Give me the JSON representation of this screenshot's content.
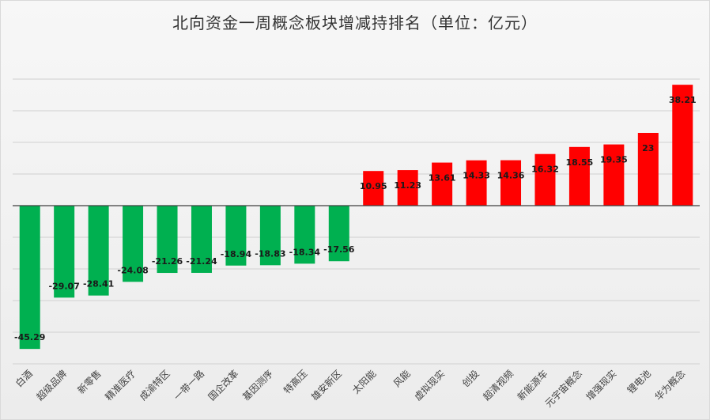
{
  "chart_data": {
    "type": "bar",
    "title": "北向资金一周概念板块增减持排名（单位：亿元）",
    "categories": [
      "白酒",
      "超级品牌",
      "新零售",
      "精准医疗",
      "成渝特区",
      "一带一路",
      "国企改革",
      "基因测序",
      "特高压",
      "雄安新区",
      "太阳能",
      "风能",
      "虚拟现实",
      "创投",
      "超清视频",
      "新能源车",
      "元宇宙概念",
      "增强现实",
      "锂电池",
      "华为概念"
    ],
    "values": [
      -45.29,
      -29.07,
      -28.41,
      -24.08,
      -21.26,
      -21.24,
      -18.94,
      -18.83,
      -18.34,
      -17.56,
      10.95,
      11.23,
      13.61,
      14.33,
      14.36,
      16.32,
      18.55,
      19.35,
      23,
      38.21
    ],
    "labels": [
      "-45.29",
      "-29.07",
      "-28.41",
      "-24.08",
      "-21.26",
      "-21.24",
      "-18.94",
      "-18.83",
      "-18.34",
      "-17.56",
      "10.95",
      "11.23",
      "13.61",
      "14.33",
      "14.36",
      "16.32",
      "18.55",
      "19.35",
      "23",
      "38.21"
    ],
    "ylim": [
      -50,
      40
    ],
    "grid": true,
    "legend": "none",
    "colors": {
      "positive": "#ff0000",
      "negative": "#00b050"
    }
  }
}
